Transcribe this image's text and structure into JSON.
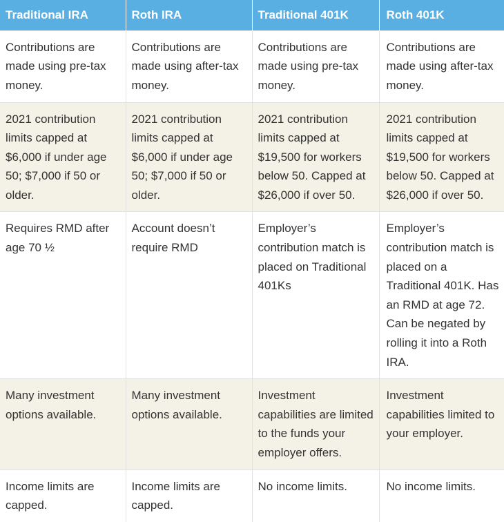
{
  "table": {
    "headers": [
      "Traditional IRA",
      "Roth IRA",
      "Traditional 401K",
      "Roth 401K"
    ],
    "rows": [
      [
        "Contributions are made using pre-tax money.",
        "Contributions are made using after-tax money.",
        "Contributions are made using pre-tax money.",
        "Contributions are made using after-tax money."
      ],
      [
        "2021 contribution limits capped at $6,000 if under age 50; $7,000 if 50 or older.",
        "2021 contribution limits capped at $6,000 if under age 50; $7,000 if 50 or older.",
        "2021 contribution limits capped at $19,500 for workers below 50. Capped at $26,000 if over 50.",
        "2021 contribution limits capped at $19,500 for workers below 50. Capped at $26,000 if over 50."
      ],
      [
        "Requires RMD after age 70 ½",
        "Account doesn’t require RMD",
        "Employer’s contribution match is placed on Traditional 401Ks",
        "Employer’s contribution match is placed on a Traditional 401K. Has an RMD at age 72. Can be negated by rolling it into a Roth IRA."
      ],
      [
        "Many investment options available.",
        "Many investment options available.",
        "Investment capabilities are limited to the funds your employer offers.",
        "Investment capabilities limited to your employer."
      ],
      [
        "Income limits are capped.",
        "Income limits are capped.",
        "No income limits.",
        "No income limits."
      ]
    ]
  },
  "colors": {
    "header_bg": "#5aafe2",
    "header_text": "#ffffff",
    "shaded_row_bg": "#f4f2e6",
    "plain_row_bg": "#ffffff",
    "body_text": "#333333"
  }
}
